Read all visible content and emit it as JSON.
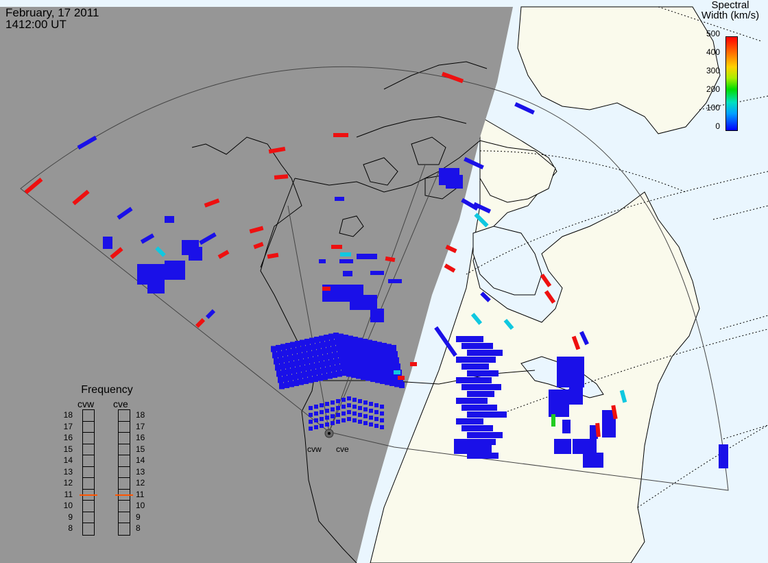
{
  "header": {
    "date": "February, 17 2011",
    "time": "1412:00 UT"
  },
  "colorbar": {
    "title_line1": "Spectral",
    "title_line2": "Width (km/s)",
    "ticks": [
      "500",
      "400",
      "300",
      "200",
      "100",
      "0"
    ],
    "min": 0,
    "max": 500
  },
  "frequency_panel": {
    "title": "Frequency",
    "columns": [
      {
        "label": "cvw",
        "selected_mhz": 11
      },
      {
        "label": "cve",
        "selected_mhz": 11
      }
    ],
    "levels": [
      "18",
      "17",
      "16",
      "15",
      "14",
      "13",
      "12",
      "11",
      "10",
      "9",
      "8"
    ],
    "marker_color": "#ff5500"
  },
  "radar_sites": [
    {
      "label": "cvw"
    },
    {
      "label": "cve"
    }
  ],
  "colors": {
    "night": "#969696",
    "day_land": "#fafaec",
    "day_ocean": "#eaf6fe",
    "low_width": "#1a10e8",
    "high_width": "#ee1010",
    "mid_width": "#10c8e0"
  }
}
